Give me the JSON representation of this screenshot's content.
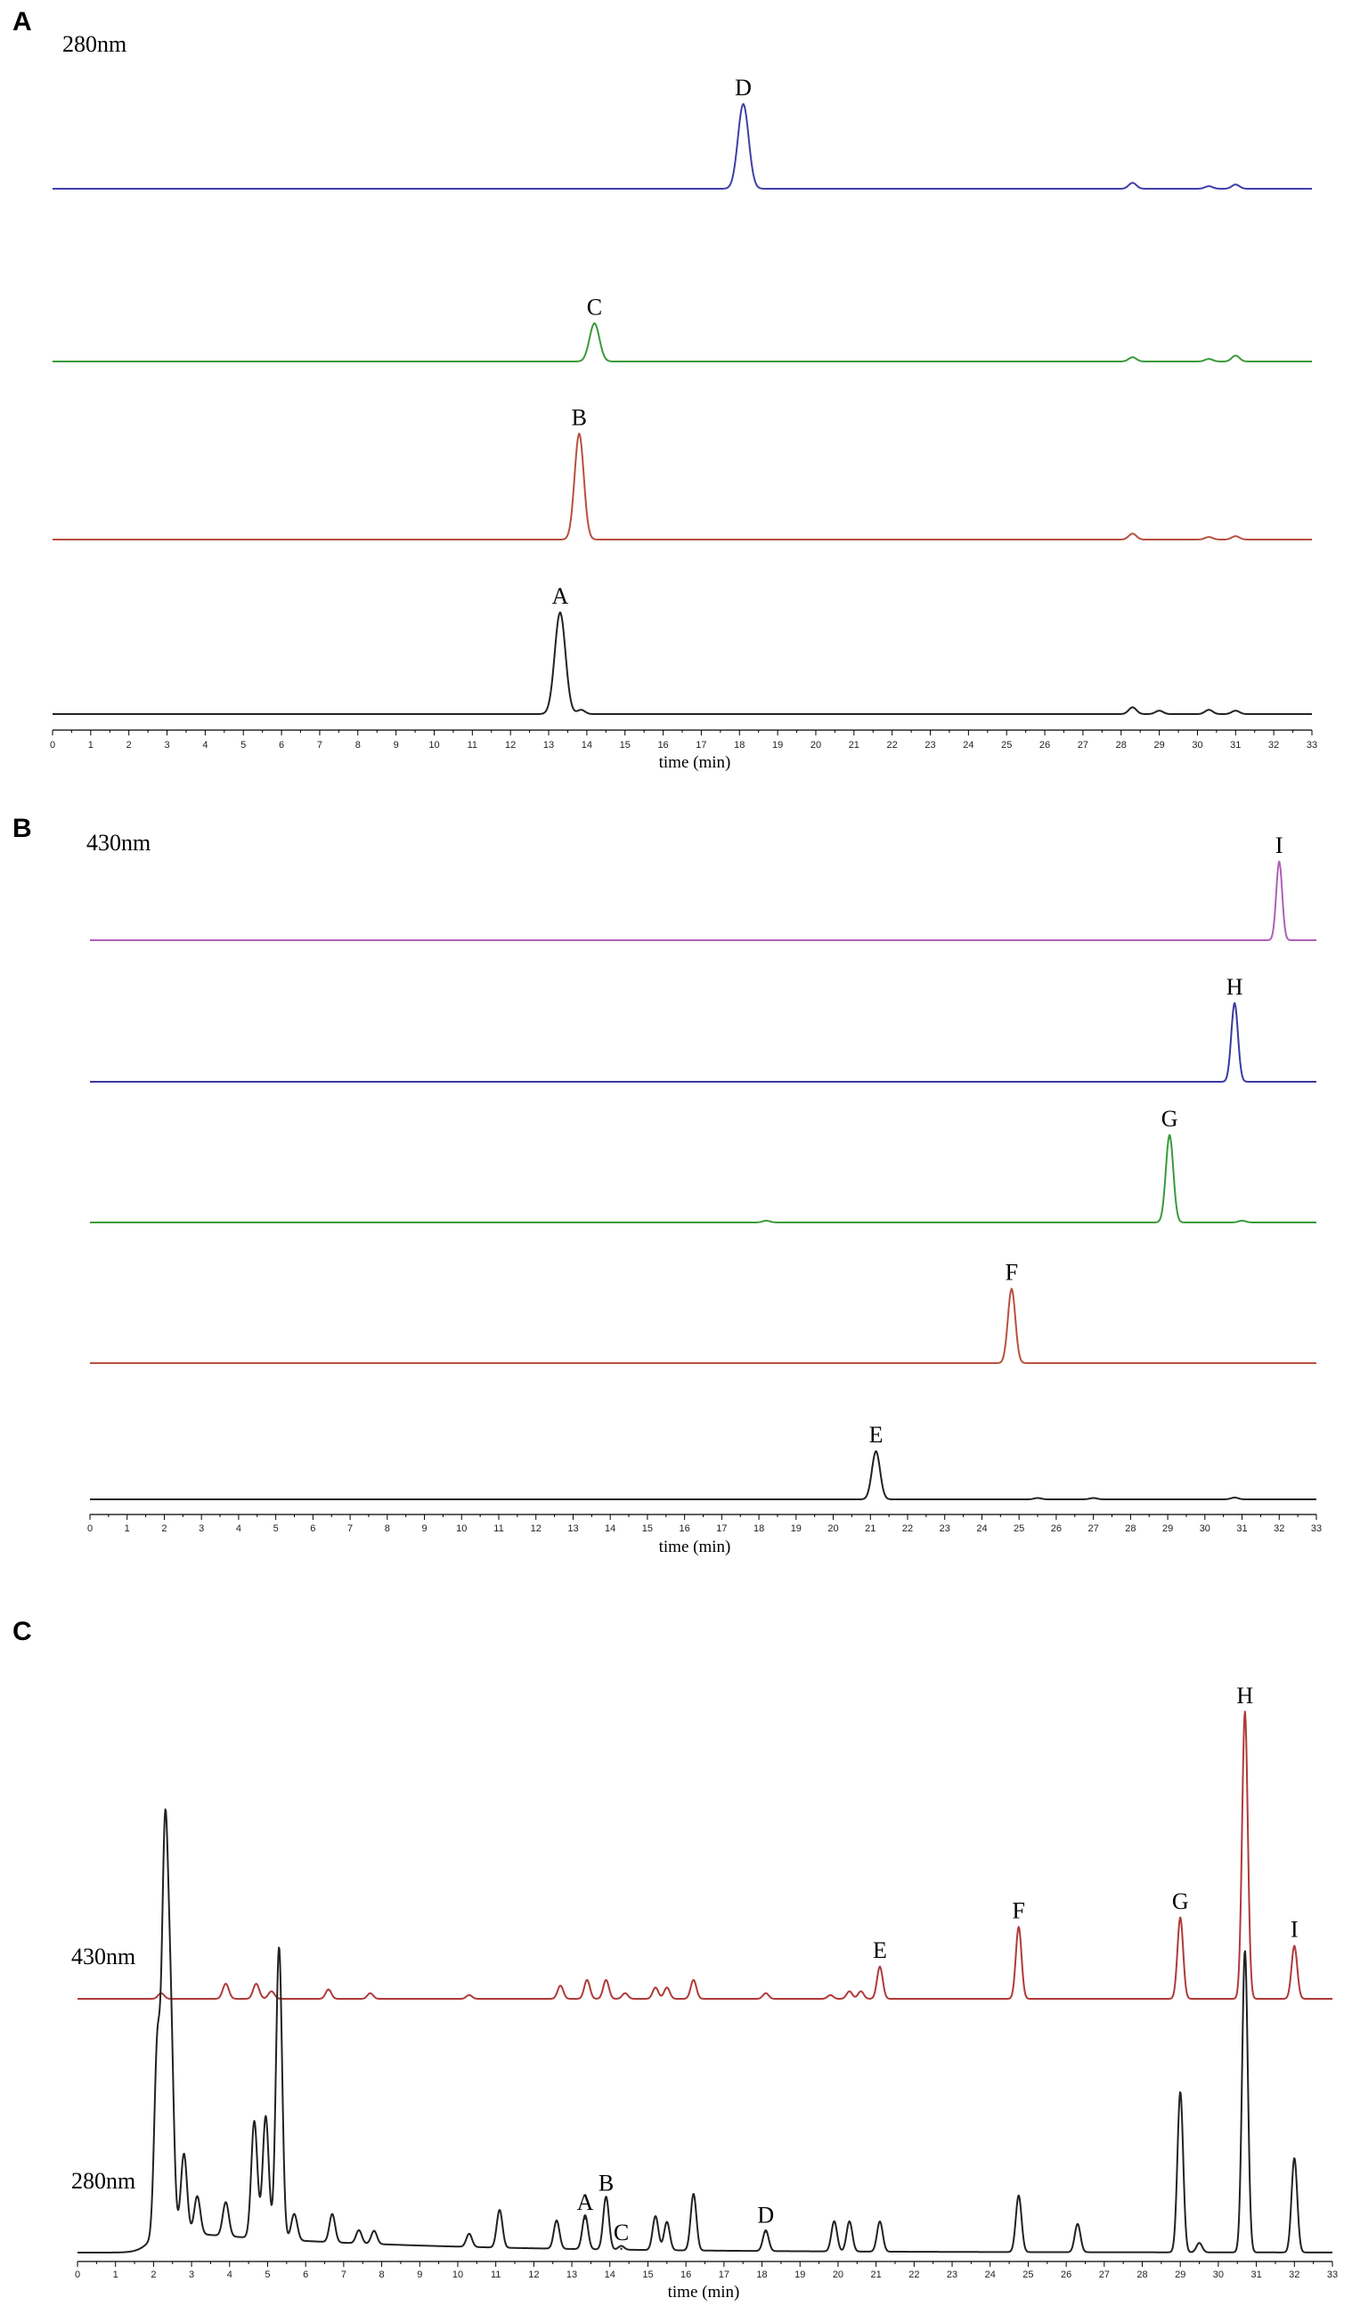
{
  "chart_data": [
    {
      "panel": "A",
      "type": "line",
      "wavelength_label": "280nm",
      "xlabel": "time (min)",
      "xlim": [
        0,
        33
      ],
      "x_ticks": [
        "0",
        "1",
        "2",
        "3",
        "4",
        "5",
        "6",
        "7",
        "8",
        "9",
        "10",
        "11",
        "12",
        "13",
        "14",
        "15",
        "16",
        "17",
        "18",
        "19",
        "20",
        "21",
        "22",
        "23",
        "24",
        "25",
        "26",
        "27",
        "28",
        "29",
        "30",
        "31",
        "32",
        "33"
      ],
      "series": [
        {
          "color": "#3f3fa8",
          "peaks": [
            {
              "label": "D",
              "x": 18.1,
              "height": 1.0,
              "width": 0.14
            }
          ],
          "minor": [
            [
              28.3,
              0.07
            ],
            [
              30.3,
              0.03
            ],
            [
              31.0,
              0.05
            ]
          ]
        },
        {
          "color": "#3a9a3a",
          "peaks": [
            {
              "label": "C",
              "x": 14.2,
              "height": 0.45,
              "width": 0.13
            }
          ],
          "minor": [
            [
              28.3,
              0.05
            ],
            [
              30.3,
              0.03
            ],
            [
              31.0,
              0.07
            ]
          ]
        },
        {
          "color": "#b85040",
          "peaks": [
            {
              "label": "B",
              "x": 13.8,
              "height": 1.25,
              "width": 0.12
            }
          ],
          "minor": [
            [
              28.3,
              0.07
            ],
            [
              30.3,
              0.03
            ],
            [
              31.0,
              0.04
            ]
          ]
        },
        {
          "color": "#222222",
          "peaks": [
            {
              "label": "A",
              "x": 13.3,
              "height": 1.2,
              "width": 0.14
            }
          ],
          "minor": [
            [
              13.85,
              0.05
            ],
            [
              28.3,
              0.08
            ],
            [
              29.0,
              0.04
            ],
            [
              30.3,
              0.05
            ],
            [
              31.0,
              0.04
            ]
          ]
        }
      ]
    },
    {
      "panel": "B",
      "type": "line",
      "wavelength_label": "430nm",
      "xlabel": "time (min)",
      "xlim": [
        0,
        33
      ],
      "x_ticks": [
        "0",
        "1",
        "2",
        "3",
        "4",
        "5",
        "6",
        "7",
        "8",
        "9",
        "10",
        "11",
        "12",
        "13",
        "14",
        "15",
        "16",
        "17",
        "18",
        "19",
        "20",
        "21",
        "22",
        "23",
        "24",
        "25",
        "26",
        "27",
        "28",
        "29",
        "30",
        "31",
        "32",
        "33"
      ],
      "series": [
        {
          "color": "#b060b8",
          "peaks": [
            {
              "label": "I",
              "x": 32.0,
              "height": 0.9,
              "width": 0.08
            }
          ],
          "minor": []
        },
        {
          "color": "#3a3aa0",
          "peaks": [
            {
              "label": "H",
              "x": 30.8,
              "height": 0.9,
              "width": 0.09
            }
          ],
          "minor": []
        },
        {
          "color": "#3a9a3a",
          "peaks": [
            {
              "label": "G",
              "x": 29.05,
              "height": 1.0,
              "width": 0.1
            }
          ],
          "minor": [
            [
              18.2,
              0.02
            ],
            [
              31.0,
              0.02
            ]
          ]
        },
        {
          "color": "#b85040",
          "peaks": [
            {
              "label": "F",
              "x": 24.8,
              "height": 0.85,
              "width": 0.1
            }
          ],
          "minor": []
        },
        {
          "color": "#222222",
          "peaks": [
            {
              "label": "E",
              "x": 21.15,
              "height": 0.55,
              "width": 0.11
            }
          ],
          "minor": [
            [
              25.5,
              0.015
            ],
            [
              27.0,
              0.015
            ],
            [
              30.8,
              0.02
            ]
          ]
        }
      ]
    },
    {
      "panel": "C",
      "type": "line",
      "xlabel": "time (min)",
      "xlim": [
        0,
        33
      ],
      "x_ticks": [
        "0",
        "1",
        "2",
        "3",
        "4",
        "5",
        "6",
        "7",
        "8",
        "9",
        "10",
        "11",
        "12",
        "13",
        "14",
        "15",
        "16",
        "17",
        "18",
        "19",
        "20",
        "21",
        "22",
        "23",
        "24",
        "25",
        "26",
        "27",
        "28",
        "29",
        "30",
        "31",
        "32",
        "33"
      ],
      "series": [
        {
          "name": "430nm",
          "color": "#b03a3a",
          "labeled_peaks": [
            {
              "label": "E",
              "x": 21.1,
              "height": 0.17
            },
            {
              "label": "F",
              "x": 24.75,
              "height": 0.38
            },
            {
              "label": "G",
              "x": 29.0,
              "height": 0.43
            },
            {
              "label": "H",
              "x": 30.7,
              "height": 1.52
            },
            {
              "label": "I",
              "x": 32.0,
              "height": 0.28
            }
          ],
          "other_peaks": [
            [
              2.2,
              0.03
            ],
            [
              3.9,
              0.08
            ],
            [
              4.7,
              0.08
            ],
            [
              5.1,
              0.04
            ],
            [
              6.6,
              0.05
            ],
            [
              7.7,
              0.03
            ],
            [
              10.3,
              0.02
            ],
            [
              12.7,
              0.07
            ],
            [
              13.4,
              0.1
            ],
            [
              13.9,
              0.1
            ],
            [
              14.4,
              0.03
            ],
            [
              15.2,
              0.06
            ],
            [
              15.5,
              0.06
            ],
            [
              16.2,
              0.1
            ],
            [
              18.1,
              0.03
            ],
            [
              19.8,
              0.02
            ],
            [
              20.3,
              0.04
            ],
            [
              20.6,
              0.04
            ]
          ]
        },
        {
          "name": "280nm",
          "color": "#222222",
          "labeled_peaks": [
            {
              "label": "A",
              "x": 13.35,
              "height": 0.18
            },
            {
              "label": "B",
              "x": 13.9,
              "height": 0.28
            },
            {
              "label": "C",
              "x": 14.3,
              "height": 0.02
            },
            {
              "label": "D",
              "x": 18.1,
              "height": 0.11
            }
          ],
          "other_peaks": [
            [
              2.1,
              1.0
            ],
            [
              2.3,
              2.0
            ],
            [
              2.45,
              1.05
            ],
            [
              2.8,
              0.42
            ],
            [
              3.15,
              0.2
            ],
            [
              3.9,
              0.18
            ],
            [
              4.65,
              0.62
            ],
            [
              4.95,
              0.65
            ],
            [
              5.3,
              1.55
            ],
            [
              5.7,
              0.14
            ],
            [
              6.7,
              0.15
            ],
            [
              7.4,
              0.07
            ],
            [
              7.8,
              0.07
            ],
            [
              10.3,
              0.07
            ],
            [
              11.1,
              0.2
            ],
            [
              12.6,
              0.15
            ],
            [
              15.2,
              0.18
            ],
            [
              15.5,
              0.15
            ],
            [
              16.2,
              0.3
            ],
            [
              19.9,
              0.16
            ],
            [
              20.3,
              0.16
            ],
            [
              21.1,
              0.16
            ],
            [
              24.75,
              0.3
            ],
            [
              26.3,
              0.15
            ],
            [
              29.0,
              0.85
            ],
            [
              29.5,
              0.05
            ],
            [
              30.7,
              1.6
            ],
            [
              32.0,
              0.5
            ]
          ]
        }
      ]
    }
  ]
}
